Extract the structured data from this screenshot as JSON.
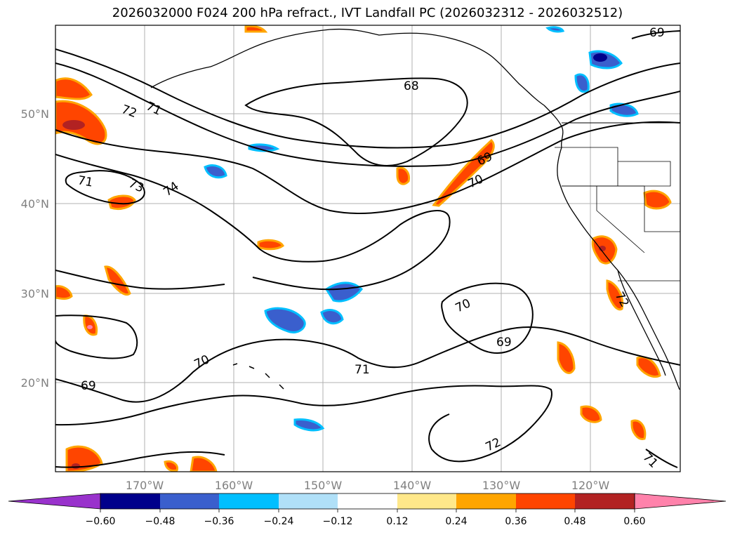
{
  "title": "2026032000 F024 200 hPa refract., IVT Landfall PC (2026032312 - 2026032512)",
  "axes": {
    "lat_labels": [
      "50°N",
      "40°N",
      "30°N",
      "20°N"
    ],
    "lon_labels": [
      "170°W",
      "160°W",
      "150°W",
      "140°W",
      "130°W",
      "120°W"
    ]
  },
  "contour_labels": [
    "69",
    "68",
    "72",
    "71",
    "71",
    "73",
    "74",
    "69",
    "70",
    "70",
    "69",
    "70",
    "69",
    "71",
    "72",
    "72",
    "71"
  ],
  "colorbar": {
    "ticks": [
      "−0.60",
      "−0.48",
      "−0.36",
      "−0.24",
      "−0.12",
      "0.12",
      "0.24",
      "0.36",
      "0.48",
      "0.60"
    ],
    "colors": [
      "#9932cc",
      "#00008b",
      "#3a5fcd",
      "#00bfff",
      "#b0e0f8",
      "#ffffff",
      "#ffe88a",
      "#ffa500",
      "#ff4500",
      "#b22222",
      "#ff82ab"
    ]
  },
  "colors": {
    "frame": "#000000",
    "grid": "#b0b0b0",
    "coast": "#000000",
    "contour": "#000000"
  }
}
